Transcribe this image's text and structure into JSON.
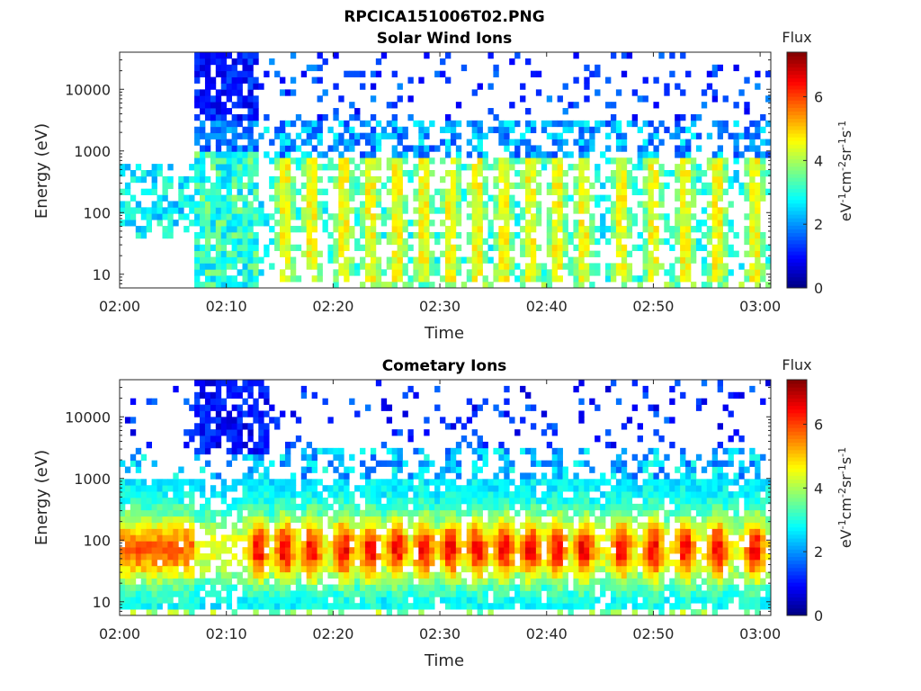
{
  "figure_title": "RPCICA151006T02.PNG",
  "chart_data": [
    {
      "type": "heatmap",
      "title": "Solar Wind Ions",
      "xlabel": "Time",
      "ylabel": "Energy (eV)",
      "x_ticks": [
        "02:00",
        "02:10",
        "02:20",
        "02:30",
        "02:40",
        "02:50",
        "03:00"
      ],
      "x_range_minutes": [
        0,
        61
      ],
      "y_scale": "log",
      "y_ticks": [
        "10",
        "100",
        "1000",
        "10000"
      ],
      "y_tick_values": [
        10,
        100,
        1000,
        10000
      ],
      "ylim": [
        6,
        40000
      ],
      "colorbar": {
        "label": "Flux",
        "units": "eV-1cm-2sr-1s-1",
        "range": [
          0,
          7.4
        ],
        "ticks": [
          "0",
          "2",
          "4",
          "6"
        ],
        "colormap": "jet"
      },
      "features": {
        "gap_before_minute": 7,
        "periodic_peaks_minutes": [
          15.5,
          18,
          21,
          23.5,
          26,
          28.5,
          31,
          33.5,
          36,
          38.5,
          41,
          43.5,
          47,
          50,
          53,
          56,
          59.5
        ]
      }
    },
    {
      "type": "heatmap",
      "title": "Cometary Ions",
      "xlabel": "Time",
      "ylabel": "Energy (eV)",
      "x_ticks": [
        "02:00",
        "02:10",
        "02:20",
        "02:30",
        "02:40",
        "02:50",
        "03:00"
      ],
      "x_range_minutes": [
        0,
        61
      ],
      "y_scale": "log",
      "y_ticks": [
        "10",
        "100",
        "1000",
        "10000"
      ],
      "y_tick_values": [
        10,
        100,
        1000,
        10000
      ],
      "ylim": [
        6,
        40000
      ],
      "colorbar": {
        "label": "Flux",
        "units": "eV-1cm-2sr-1s-1",
        "range": [
          0,
          7.4
        ],
        "ticks": [
          "0",
          "2",
          "4",
          "6"
        ],
        "colormap": "jet"
      },
      "features": {
        "core_energy_ev": [
          20,
          300
        ],
        "periodic_peaks_minutes": [
          13,
          15.5,
          18,
          21,
          23.5,
          26,
          28.5,
          31,
          33.5,
          36,
          38.5,
          41,
          43.5,
          47,
          50,
          53,
          56,
          59.5
        ]
      }
    }
  ]
}
